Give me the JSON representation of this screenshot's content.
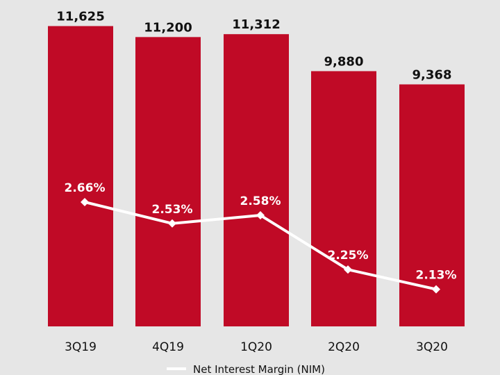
{
  "chart_data": {
    "type": "bar",
    "categories": [
      "3Q19",
      "4Q19",
      "1Q20",
      "2Q20",
      "3Q20"
    ],
    "series": [
      {
        "values": [
          11625,
          11200,
          11312,
          9880,
          9368
        ],
        "value_labels": [
          "11,625",
          "11,200",
          "11,312",
          "9,880",
          "9,368"
        ],
        "color": "#c00a26"
      },
      {
        "name": "Net Interest Margin (NIM)",
        "type": "line",
        "values": [
          2.66,
          2.53,
          2.58,
          2.25,
          2.13
        ],
        "value_labels": [
          "2.66%",
          "2.53%",
          "2.58%",
          "2.25%",
          "2.13%"
        ],
        "color": "#ffffff"
      }
    ],
    "legend": {
      "position": "bottom",
      "label": "Net Interest Margin (NIM)"
    },
    "grid": false,
    "colors": {
      "background": "#e6e6e6",
      "bar": "#c00a26",
      "line": "#ffffff",
      "text": "#111111"
    }
  }
}
